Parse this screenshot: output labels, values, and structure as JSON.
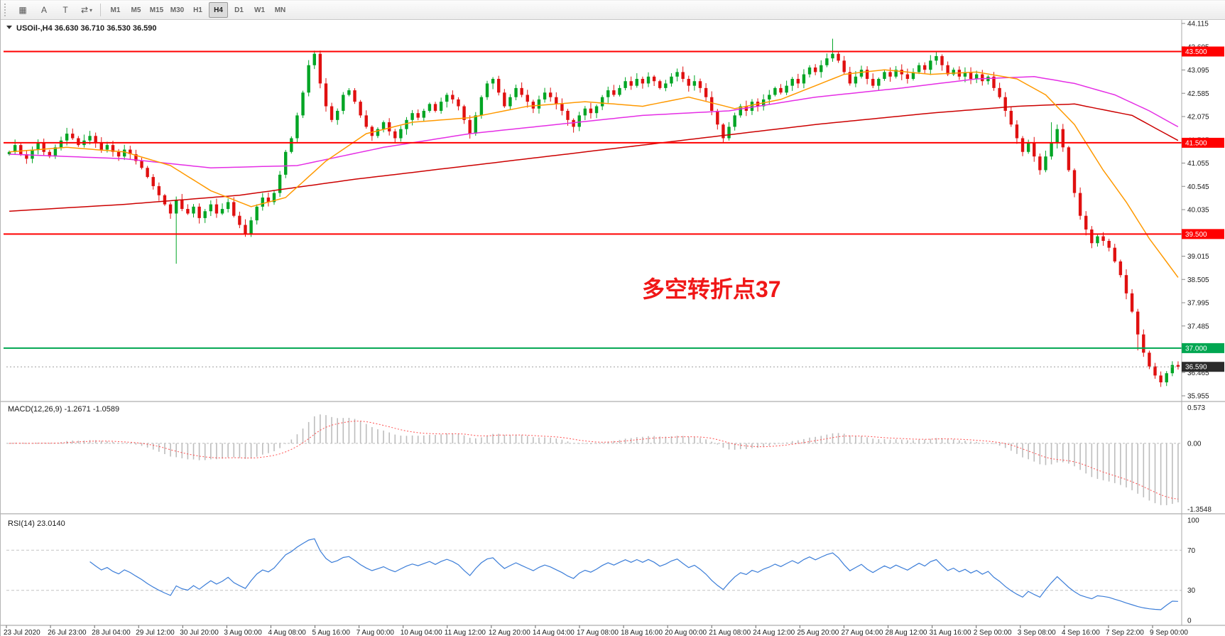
{
  "toolbar": {
    "icons": [
      {
        "name": "charts-grid-icon",
        "glyph": "▦"
      },
      {
        "name": "annotation-a-icon",
        "glyph": "A"
      },
      {
        "name": "text-tool-icon",
        "glyph": "T"
      },
      {
        "name": "cursor-tool-icon",
        "glyph": "⇄",
        "caret": "▾"
      }
    ],
    "timeframes": [
      "M1",
      "M5",
      "M15",
      "M30",
      "H1",
      "H4",
      "D1",
      "W1",
      "MN"
    ],
    "active_timeframe": "H4"
  },
  "chart": {
    "symbol": "USOil-",
    "timeframe": "H4",
    "open": "36.630",
    "high": "36.710",
    "low": "36.530",
    "close": "36.590",
    "title_line": "USOil-,H4  36.630 36.710 36.530 36.590"
  },
  "annotation": {
    "text": "多空转折点37",
    "color": "#f01717"
  },
  "levels": [
    {
      "value": 43.5,
      "label": "43.500",
      "color": "#ff0000",
      "width": 2
    },
    {
      "value": 41.5,
      "label": "41.500",
      "color": "#ff0000",
      "width": 2
    },
    {
      "value": 39.5,
      "label": "39.500",
      "color": "#ff0000",
      "width": 2
    },
    {
      "value": 37.0,
      "label": "37.000",
      "color": "#00a651",
      "width": 2
    }
  ],
  "current_price": {
    "value": 36.59,
    "label": "36.590",
    "line_color": "#9e9e9e",
    "box_color": "#2b2b2b"
  },
  "macd": {
    "label": "MACD(12,26,9) -1.2671 -1.0589",
    "fast": 12,
    "slow": 26,
    "signal": 9,
    "value": "-1.2671",
    "signal_value": "-1.0589",
    "scale_top": "0.573",
    "scale_zero": "0.00",
    "scale_bottom": "-1.3548",
    "bar_color": "#bdbdbd",
    "signal_color": "#ff4d4d"
  },
  "rsi": {
    "label": "RSI(14) 23.0140",
    "period": 14,
    "value": "23.0140",
    "line_color": "#3b7dd8",
    "scale_labels": [
      100,
      70,
      30,
      0
    ],
    "level_lines": [
      70,
      30
    ]
  },
  "chart_data": {
    "type": "candlestick",
    "symbol": "USOil-",
    "timeframe": "H4",
    "title": "USOil-,H4",
    "ylim": [
      35.955,
      44.115
    ],
    "y_ticks": [
      44.115,
      43.605,
      43.095,
      42.585,
      42.075,
      41.565,
      41.055,
      40.545,
      40.035,
      39.525,
      39.015,
      38.505,
      37.995,
      37.485,
      36.975,
      36.465,
      35.955
    ],
    "x_labels": [
      "23 Jul 2020",
      "26 Jul 23:00",
      "28 Jul 04:00",
      "29 Jul 12:00",
      "30 Jul 20:00",
      "3 Aug 00:00",
      "4 Aug 08:00",
      "5 Aug 16:00",
      "7 Aug 00:00",
      "10 Aug 04:00",
      "11 Aug 12:00",
      "12 Aug 20:00",
      "14 Aug 04:00",
      "17 Aug 08:00",
      "18 Aug 16:00",
      "20 Aug 00:00",
      "21 Aug 08:00",
      "24 Aug 12:00",
      "25 Aug 20:00",
      "27 Aug 04:00",
      "28 Aug 12:00",
      "31 Aug 16:00",
      "2 Sep 00:00",
      "3 Sep 08:00",
      "4 Sep 16:00",
      "7 Sep 22:00",
      "9 Sep 00:00"
    ],
    "first_open": 41.25,
    "closes": [
      41.3,
      41.45,
      41.25,
      41.15,
      41.35,
      41.5,
      41.3,
      41.2,
      41.4,
      41.55,
      41.7,
      41.6,
      41.45,
      41.55,
      41.65,
      41.5,
      41.35,
      41.45,
      41.3,
      41.2,
      41.35,
      41.25,
      41.1,
      40.95,
      40.75,
      40.55,
      40.35,
      40.15,
      39.95,
      40.25,
      40.05,
      39.95,
      40.1,
      39.85,
      40.0,
      40.15,
      39.95,
      40.05,
      40.2,
      39.9,
      39.7,
      39.5,
      39.8,
      40.1,
      40.3,
      40.2,
      40.4,
      40.8,
      41.3,
      41.6,
      42.1,
      42.6,
      43.2,
      43.45,
      42.8,
      42.3,
      42.0,
      42.2,
      42.55,
      42.65,
      42.4,
      42.1,
      41.85,
      41.65,
      41.8,
      41.95,
      41.75,
      41.6,
      41.8,
      42.0,
      42.15,
      42.05,
      42.2,
      42.35,
      42.2,
      42.4,
      42.55,
      42.45,
      42.3,
      42.0,
      41.7,
      42.1,
      42.5,
      42.8,
      42.9,
      42.6,
      42.3,
      42.5,
      42.7,
      42.55,
      42.4,
      42.25,
      42.45,
      42.6,
      42.5,
      42.35,
      42.2,
      42.0,
      41.85,
      42.1,
      42.25,
      42.15,
      42.3,
      42.5,
      42.65,
      42.55,
      42.7,
      42.85,
      42.75,
      42.9,
      42.8,
      42.95,
      42.85,
      42.7,
      42.8,
      42.95,
      43.05,
      42.9,
      42.75,
      42.85,
      42.7,
      42.5,
      42.2,
      41.9,
      41.6,
      41.85,
      42.1,
      42.3,
      42.2,
      42.4,
      42.3,
      42.45,
      42.55,
      42.7,
      42.6,
      42.75,
      42.9,
      42.8,
      43.0,
      43.15,
      43.05,
      43.2,
      43.35,
      43.45,
      43.3,
      43.05,
      42.8,
      42.95,
      43.1,
      42.9,
      42.75,
      42.9,
      43.05,
      42.95,
      43.1,
      43.0,
      42.9,
      43.05,
      43.2,
      43.1,
      43.3,
      43.4,
      43.2,
      43.0,
      43.1,
      42.95,
      43.05,
      42.9,
      43.0,
      42.85,
      42.95,
      42.7,
      42.5,
      42.2,
      41.9,
      41.6,
      41.3,
      41.5,
      41.2,
      40.9,
      41.2,
      41.5,
      41.8,
      41.4,
      40.9,
      40.4,
      39.9,
      39.6,
      39.3,
      39.45,
      39.35,
      39.2,
      38.9,
      38.6,
      38.2,
      37.8,
      37.3,
      36.9,
      36.6,
      36.4,
      36.25,
      36.45,
      36.63,
      36.59
    ],
    "wick_overrides": {
      "29": {
        "low": 38.85
      },
      "53": {
        "high": 43.52
      },
      "143": {
        "high": 43.78
      },
      "161": {
        "high": 43.5
      },
      "181": {
        "high": 41.95
      },
      "196": {
        "low": 36.95
      },
      "200": {
        "low": 36.15
      },
      "203": {
        "high": 36.71,
        "low": 36.53
      }
    },
    "colors": {
      "up": "#00a524",
      "down": "#e01010"
    },
    "moving_averages": [
      {
        "name": "ma-slow-red",
        "color": "#cc0000",
        "points": [
          [
            0,
            40.0
          ],
          [
            20,
            40.15
          ],
          [
            40,
            40.35
          ],
          [
            60,
            40.7
          ],
          [
            80,
            41.0
          ],
          [
            100,
            41.3
          ],
          [
            120,
            41.6
          ],
          [
            140,
            41.9
          ],
          [
            160,
            42.15
          ],
          [
            175,
            42.3
          ],
          [
            185,
            42.35
          ],
          [
            195,
            42.1
          ],
          [
            203,
            41.55
          ]
        ]
      },
      {
        "name": "ma-mid-magenta",
        "color": "#e52ee5",
        "points": [
          [
            0,
            41.25
          ],
          [
            20,
            41.15
          ],
          [
            35,
            40.95
          ],
          [
            50,
            41.0
          ],
          [
            65,
            41.4
          ],
          [
            80,
            41.7
          ],
          [
            95,
            41.9
          ],
          [
            110,
            42.1
          ],
          [
            125,
            42.2
          ],
          [
            140,
            42.5
          ],
          [
            155,
            42.7
          ],
          [
            168,
            42.9
          ],
          [
            178,
            42.95
          ],
          [
            185,
            42.8
          ],
          [
            192,
            42.55
          ],
          [
            198,
            42.2
          ],
          [
            203,
            41.85
          ]
        ]
      },
      {
        "name": "ma-fast-orange",
        "color": "#ff9900",
        "points": [
          [
            0,
            41.3
          ],
          [
            10,
            41.4
          ],
          [
            20,
            41.3
          ],
          [
            28,
            41.0
          ],
          [
            35,
            40.45
          ],
          [
            42,
            40.1
          ],
          [
            48,
            40.3
          ],
          [
            55,
            41.1
          ],
          [
            62,
            41.7
          ],
          [
            70,
            41.95
          ],
          [
            80,
            42.05
          ],
          [
            90,
            42.3
          ],
          [
            100,
            42.4
          ],
          [
            110,
            42.3
          ],
          [
            118,
            42.5
          ],
          [
            126,
            42.25
          ],
          [
            134,
            42.45
          ],
          [
            145,
            43.0
          ],
          [
            152,
            43.1
          ],
          [
            160,
            43.0
          ],
          [
            168,
            43.05
          ],
          [
            175,
            42.9
          ],
          [
            180,
            42.55
          ],
          [
            185,
            41.9
          ],
          [
            190,
            40.9
          ],
          [
            194,
            40.2
          ],
          [
            198,
            39.4
          ],
          [
            203,
            38.55
          ]
        ]
      }
    ]
  }
}
